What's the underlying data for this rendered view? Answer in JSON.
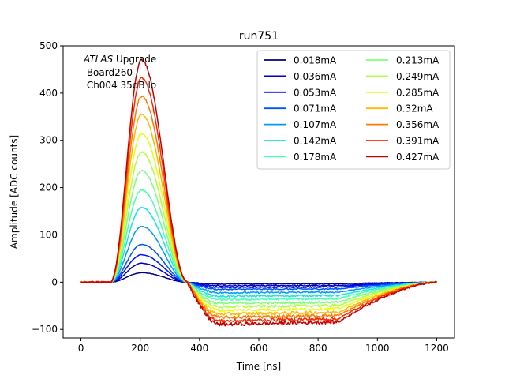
{
  "chart_data": {
    "type": "line",
    "title": "run751",
    "xlabel": "Time [ns]",
    "ylabel": "Amplitude [ADC counts]",
    "xlim": [
      -60,
      1260
    ],
    "ylim": [
      -118,
      500
    ],
    "xticks": [
      0,
      200,
      400,
      600,
      800,
      1000,
      1200
    ],
    "yticks": [
      -100,
      0,
      100,
      200,
      300,
      400,
      500
    ],
    "annotation": {
      "line1_italic": "ATLAS",
      "line1_rest": " Upgrade",
      "line2": " Board260",
      "line3": " Ch004 35dB lo"
    },
    "legend_location": "top-right",
    "legend_columns": 2,
    "pulse_shape": {
      "baseline_start_ns": 0,
      "rise_start_ns": 100,
      "peak_ns": 205,
      "zero_crossing_ns": 360,
      "undershoot_min_ns": 470,
      "undershoot_end_ns": 870,
      "recovery_end_ns": 1200,
      "undershoot_ratio": 0.19
    },
    "series": [
      {
        "name": "0.018mA",
        "peak": 20,
        "color": "#00007f"
      },
      {
        "name": "0.036mA",
        "peak": 40,
        "color": "#0000c8"
      },
      {
        "name": "0.053mA",
        "peak": 58,
        "color": "#0010ff"
      },
      {
        "name": "0.071mA",
        "peak": 80,
        "color": "#0054ff"
      },
      {
        "name": "0.107mA",
        "peak": 118,
        "color": "#0098ff"
      },
      {
        "name": "0.142mA",
        "peak": 158,
        "color": "#16e6e0"
      },
      {
        "name": "0.178mA",
        "peak": 195,
        "color": "#49ffad"
      },
      {
        "name": "0.213mA",
        "peak": 236,
        "color": "#7dff7a"
      },
      {
        "name": "0.249mA",
        "peak": 275,
        "color": "#b0ff46"
      },
      {
        "name": "0.285mA",
        "peak": 314,
        "color": "#e4ff13"
      },
      {
        "name": "0.32mA",
        "peak": 355,
        "color": "#ffb900"
      },
      {
        "name": "0.356mA",
        "peak": 393,
        "color": "#ff7a00"
      },
      {
        "name": "0.391mA",
        "peak": 432,
        "color": "#ff2900"
      },
      {
        "name": "0.427mA",
        "peak": 470,
        "color": "#c80000"
      }
    ]
  }
}
